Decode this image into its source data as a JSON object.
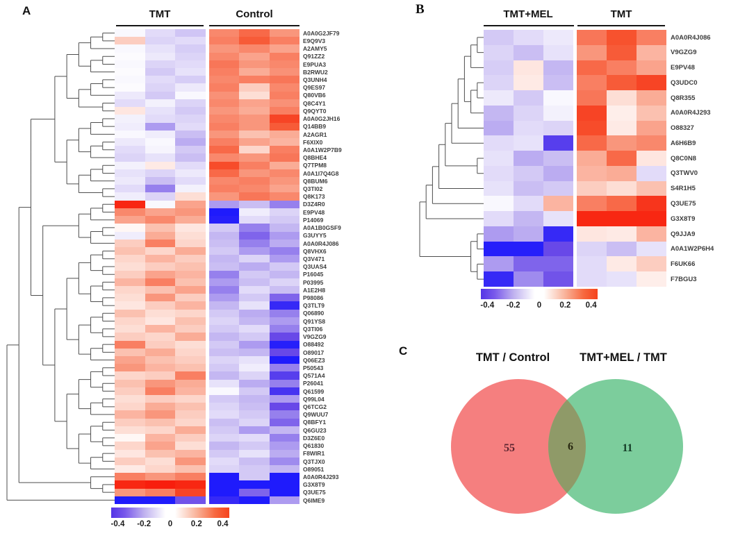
{
  "chart_data": [
    {
      "type": "heatmap",
      "panel": "A",
      "col_groups": [
        {
          "label": "TMT",
          "cols": 3
        },
        {
          "label": "Control",
          "cols": 3
        }
      ],
      "rows": [
        "A0A0G2JF79",
        "E9Q9V3",
        "A2AMY5",
        "Q91ZZ2",
        "E9PUA3",
        "B2RWU2",
        "Q3UNH4",
        "Q9ES97",
        "Q80VB6",
        "Q8C4Y1",
        "Q9QYT0",
        "A0A0G2JH16",
        "Q14BB9",
        "A2AGR1",
        "F6XIX0",
        "A0A1W2P7B9",
        "Q8BHE4",
        "Q7TPM8",
        "A0A1I7Q4G8",
        "Q8BUM6",
        "Q3TI02",
        "Q8K173",
        "D3Z4R0",
        "E9PV48",
        "P14069",
        "A0A1B0GSF9",
        "G3UYY5",
        "A0A0R4J086",
        "Q8VHX6",
        "Q3V471",
        "Q3UAS4",
        "P16045",
        "P03995",
        "A1E2H8",
        "P98086",
        "Q3TLT9",
        "Q06890",
        "Q91YS8",
        "Q3TI06",
        "V9GZG9",
        "O88492",
        "O89017",
        "Q06EZ3",
        "P50543",
        "Q571A4",
        "P26041",
        "Q61599",
        "Q99L04",
        "Q6TCG2",
        "Q9WUU7",
        "Q8BFY1",
        "Q6GU23",
        "D3Z6E0",
        "Q61830",
        "F8WIR1",
        "Q3TJX0",
        "O89051",
        "A0A0R4J293",
        "G3X8T9",
        "Q3UE75",
        "Q6IME9"
      ],
      "values": [
        [
          -0.02,
          -0.1,
          -0.16,
          0.28,
          0.35,
          0.25
        ],
        [
          0.12,
          -0.12,
          -0.1,
          0.3,
          0.38,
          0.3
        ],
        [
          -0.02,
          -0.08,
          -0.14,
          0.25,
          0.28,
          0.22
        ],
        [
          -0.01,
          -0.06,
          -0.12,
          0.28,
          0.22,
          0.3
        ],
        [
          -0.02,
          -0.12,
          -0.1,
          0.32,
          0.25,
          0.28
        ],
        [
          -0.01,
          -0.15,
          -0.08,
          0.3,
          0.2,
          0.26
        ],
        [
          -0.02,
          -0.1,
          -0.14,
          0.28,
          0.3,
          0.32
        ],
        [
          -0.01,
          -0.12,
          -0.06,
          0.3,
          0.12,
          0.28
        ],
        [
          -0.06,
          -0.15,
          -0.02,
          0.26,
          0.08,
          0.3
        ],
        [
          -0.1,
          -0.04,
          -0.12,
          0.28,
          0.22,
          0.26
        ],
        [
          0.06,
          -0.08,
          -0.15,
          0.25,
          0.2,
          0.3
        ],
        [
          -0.04,
          -0.1,
          -0.12,
          0.28,
          0.25,
          0.45
        ],
        [
          -0.05,
          -0.25,
          -0.1,
          0.3,
          0.25,
          0.38
        ],
        [
          -0.02,
          -0.05,
          -0.18,
          0.25,
          0.15,
          0.2
        ],
        [
          -0.06,
          -0.02,
          -0.22,
          0.3,
          0.22,
          0.18
        ],
        [
          -0.1,
          -0.03,
          -0.15,
          0.35,
          0.1,
          0.3
        ],
        [
          -0.12,
          -0.08,
          -0.18,
          0.28,
          0.25,
          0.32
        ],
        [
          -0.04,
          0.05,
          -0.1,
          0.42,
          0.3,
          0.2
        ],
        [
          -0.08,
          -0.12,
          -0.06,
          0.35,
          0.25,
          0.28
        ],
        [
          -0.06,
          -0.18,
          -0.1,
          0.28,
          0.3,
          0.25
        ],
        [
          -0.1,
          -0.3,
          -0.04,
          0.3,
          0.28,
          0.22
        ],
        [
          -0.05,
          -0.12,
          0.08,
          0.25,
          0.32,
          0.28
        ],
        [
          0.55,
          -0.02,
          0.22,
          -0.25,
          -0.18,
          -0.3
        ],
        [
          0.28,
          0.22,
          0.25,
          -0.62,
          -0.05,
          -0.12
        ],
        [
          0.22,
          0.28,
          0.2,
          -0.6,
          -0.1,
          -0.15
        ],
        [
          0.02,
          0.15,
          0.06,
          -0.15,
          -0.3,
          -0.2
        ],
        [
          -0.05,
          0.2,
          0.08,
          -0.2,
          -0.35,
          -0.25
        ],
        [
          0.12,
          0.3,
          0.1,
          -0.18,
          -0.3,
          -0.22
        ],
        [
          0.15,
          0.1,
          0.2,
          -0.15,
          -0.25,
          -0.3
        ],
        [
          0.1,
          0.18,
          0.12,
          -0.2,
          -0.12,
          -0.25
        ],
        [
          0.08,
          0.12,
          0.15,
          -0.18,
          -0.22,
          -0.15
        ],
        [
          0.12,
          0.22,
          0.18,
          -0.3,
          -0.15,
          -0.2
        ],
        [
          0.18,
          0.3,
          0.15,
          -0.25,
          -0.18,
          -0.12
        ],
        [
          0.1,
          0.15,
          0.22,
          -0.3,
          -0.1,
          -0.18
        ],
        [
          0.08,
          0.25,
          0.12,
          -0.25,
          -0.15,
          -0.35
        ],
        [
          0.06,
          0.12,
          0.18,
          -0.2,
          -0.08,
          -0.55
        ],
        [
          0.15,
          0.08,
          0.1,
          -0.15,
          -0.22,
          -0.3
        ],
        [
          0.1,
          0.06,
          0.15,
          -0.12,
          -0.2,
          -0.25
        ],
        [
          0.08,
          0.18,
          0.12,
          -0.15,
          -0.1,
          -0.3
        ],
        [
          0.12,
          0.1,
          0.2,
          -0.2,
          -0.15,
          -0.4
        ],
        [
          0.3,
          0.12,
          0.08,
          -0.15,
          -0.25,
          -0.6
        ],
        [
          0.15,
          0.2,
          0.1,
          -0.18,
          -0.2,
          -0.4
        ],
        [
          0.22,
          0.15,
          0.12,
          -0.12,
          -0.08,
          -0.62
        ],
        [
          0.25,
          0.18,
          0.15,
          -0.15,
          -0.05,
          -0.3
        ],
        [
          0.1,
          0.12,
          0.3,
          -0.2,
          -0.12,
          -0.45
        ],
        [
          0.15,
          0.25,
          0.2,
          -0.08,
          -0.22,
          -0.3
        ],
        [
          0.12,
          0.3,
          0.18,
          -0.02,
          -0.15,
          -0.5
        ],
        [
          0.08,
          0.12,
          0.1,
          -0.15,
          -0.2,
          -0.25
        ],
        [
          0.1,
          0.2,
          0.15,
          -0.12,
          -0.18,
          -0.4
        ],
        [
          0.18,
          0.25,
          0.12,
          -0.1,
          -0.15,
          -0.3
        ],
        [
          0.12,
          0.15,
          0.1,
          -0.18,
          -0.12,
          -0.35
        ],
        [
          0.08,
          0.1,
          0.2,
          -0.15,
          -0.25,
          -0.2
        ],
        [
          0.02,
          0.18,
          0.12,
          -0.12,
          -0.1,
          -0.3
        ],
        [
          0.1,
          0.22,
          0.08,
          -0.2,
          -0.15,
          -0.25
        ],
        [
          0.06,
          0.15,
          0.18,
          -0.15,
          -0.08,
          -0.22
        ],
        [
          0.12,
          0.08,
          0.25,
          -0.1,
          -0.18,
          -0.28
        ],
        [
          0.05,
          0.1,
          0.15,
          -0.12,
          -0.15,
          -0.2
        ],
        [
          0.3,
          0.25,
          0.3,
          -0.62,
          -0.15,
          -0.62
        ],
        [
          0.55,
          0.58,
          0.55,
          -0.62,
          -0.62,
          -0.62
        ],
        [
          0.25,
          0.3,
          0.45,
          -0.62,
          -0.35,
          -0.62
        ],
        [
          -0.62,
          -0.62,
          -0.38,
          -0.55,
          -0.62,
          -0.25
        ]
      ],
      "colorbar_ticks": [
        "-0.4",
        "-0.2",
        "0",
        "0.2",
        "0.4"
      ],
      "colorbar_range": [
        -0.45,
        0.45
      ],
      "colormap": "purple-white-red"
    },
    {
      "type": "heatmap",
      "panel": "B",
      "col_groups": [
        {
          "label": "TMT+MEL",
          "cols": 3
        },
        {
          "label": "TMT",
          "cols": 3
        }
      ],
      "rows": [
        "A0A0R4J086",
        "V9GZG9",
        "E9PV48",
        "Q3UDC0",
        "Q8R355",
        "A0A0R4J293",
        "O88327",
        "A6H6B9",
        "Q8C0N8",
        "Q3TWV0",
        "S4R1H5",
        "Q3UE75",
        "G3X8T9",
        "Q9JJA9",
        "A0A1W2P6H4",
        "F6UK66",
        "F7BGU3"
      ],
      "values": [
        [
          -0.15,
          -0.1,
          -0.06,
          0.32,
          0.4,
          0.3
        ],
        [
          -0.12,
          -0.18,
          -0.08,
          0.25,
          0.38,
          0.18
        ],
        [
          -0.14,
          0.06,
          -0.2,
          0.35,
          0.3,
          0.22
        ],
        [
          -0.12,
          0.05,
          -0.18,
          0.3,
          0.38,
          0.45
        ],
        [
          -0.06,
          -0.15,
          -0.02,
          0.32,
          0.08,
          0.2
        ],
        [
          -0.2,
          -0.12,
          -0.04,
          0.45,
          0.04,
          0.15
        ],
        [
          -0.22,
          -0.1,
          -0.12,
          0.42,
          0.05,
          0.22
        ],
        [
          -0.1,
          -0.08,
          -0.45,
          0.35,
          0.25,
          0.28
        ],
        [
          -0.08,
          -0.22,
          -0.18,
          0.2,
          0.35,
          0.06
        ],
        [
          -0.1,
          -0.15,
          -0.22,
          0.18,
          0.2,
          -0.1
        ],
        [
          -0.08,
          -0.18,
          -0.15,
          0.12,
          0.08,
          0.15
        ],
        [
          -0.02,
          -0.1,
          0.18,
          0.3,
          0.35,
          0.5
        ],
        [
          -0.1,
          -0.2,
          -0.08,
          0.55,
          0.55,
          0.55
        ],
        [
          -0.25,
          -0.22,
          -0.55,
          0.06,
          0.05,
          0.18
        ],
        [
          -0.6,
          -0.6,
          -0.4,
          -0.12,
          -0.18,
          -0.08
        ],
        [
          -0.25,
          -0.35,
          -0.35,
          -0.1,
          0.05,
          0.12
        ],
        [
          -0.55,
          -0.28,
          -0.38,
          -0.1,
          -0.08,
          0.04
        ]
      ],
      "colorbar_ticks": [
        "-0.4",
        "-0.2",
        "0",
        "0.2",
        "0.4"
      ],
      "colorbar_range": [
        -0.45,
        0.45
      ],
      "colormap": "purple-white-red"
    },
    {
      "type": "venn",
      "panel": "C",
      "sets": [
        {
          "label": "TMT / Control",
          "count": "55",
          "color": "#F57F7F",
          "num_color": "#5a2430"
        },
        {
          "label": "TMT+MEL / TMT",
          "count": "11",
          "color": "#7CCD9C",
          "num_color": "#143b26"
        }
      ],
      "overlap": {
        "count": "6",
        "color": "#8F9A68",
        "num_color": "#27270f"
      }
    }
  ]
}
